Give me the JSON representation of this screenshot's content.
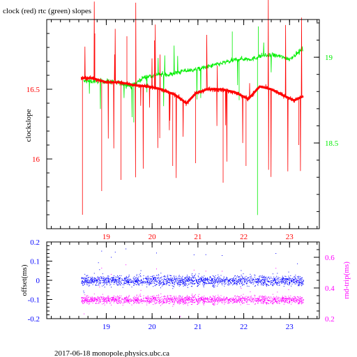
{
  "chart_data": [
    {
      "type": "line",
      "title": "clock (red) rtc (green) slopes",
      "ylabel_left": "clockslope",
      "x_ticks": [
        "19",
        "20",
        "21",
        "22",
        "23"
      ],
      "xlim": [
        17.7,
        23.65
      ],
      "ylim_left": [
        15.5,
        17.0
      ],
      "ylim_right": [
        18.0,
        19.22
      ],
      "y_ticks_left": [
        {
          "label": "16",
          "value": 16.0
        },
        {
          "label": "16.5",
          "value": 16.5
        }
      ],
      "y_ticks_right": [
        {
          "label": "18.5",
          "value": 18.5
        },
        {
          "label": "19",
          "value": 19.0
        }
      ],
      "colors": {
        "left_axis": "#ff0000",
        "right_axis": "#00ee00",
        "x_ticks": "#ff0000",
        "frame": "#000000"
      },
      "series": [
        {
          "axis": "left",
          "color": "#ff0000",
          "x": [
            18.45,
            18.7,
            19.0,
            19.3,
            19.6,
            19.9,
            20.2,
            20.5,
            20.75,
            20.95,
            21.2,
            21.5,
            21.8,
            22.1,
            22.35,
            22.6,
            22.9,
            23.1,
            23.3
          ],
          "y": [
            16.58,
            16.58,
            16.55,
            16.55,
            16.53,
            16.52,
            16.5,
            16.46,
            16.4,
            16.47,
            16.5,
            16.5,
            16.48,
            16.43,
            16.52,
            16.5,
            16.45,
            16.42,
            16.45
          ]
        },
        {
          "axis": "right",
          "color": "#00ee00",
          "x": [
            18.5,
            18.7,
            19.0,
            19.3,
            19.55,
            19.8,
            20.1,
            20.4,
            20.7,
            21.0,
            21.3,
            21.6,
            21.9,
            22.2,
            22.4,
            22.7,
            23.0,
            23.3
          ],
          "y": [
            18.86,
            18.86,
            18.86,
            18.85,
            18.83,
            18.88,
            18.9,
            18.9,
            18.92,
            18.93,
            18.95,
            18.97,
            18.99,
            18.99,
            19.01,
            19.01,
            18.99,
            19.05
          ]
        }
      ]
    },
    {
      "type": "scatter",
      "ylabel_left": "offset(ms)",
      "ylabel_right": "rnd-trip(ms)",
      "x_ticks": [
        "19",
        "20",
        "21",
        "22",
        "23"
      ],
      "xlim": [
        17.7,
        23.65
      ],
      "ylim_left": [
        -0.2,
        0.2
      ],
      "ylim_right": [
        0.2,
        0.7
      ],
      "y_ticks_left": [
        {
          "label": "-0.2",
          "value": -0.2
        },
        {
          "label": "-0.1",
          "value": -0.1
        },
        {
          "label": "0",
          "value": 0
        },
        {
          "label": "0.1",
          "value": 0.1
        },
        {
          "label": "0.2",
          "value": 0.2
        }
      ],
      "y_ticks_right": [
        {
          "label": "0.2",
          "value": 0.2
        },
        {
          "label": "0.4",
          "value": 0.4
        },
        {
          "label": "0.6",
          "value": 0.6
        }
      ],
      "colors": {
        "left_axis": "#0000ff",
        "right_axis": "#ff00ff",
        "x_ticks": "#0000ff",
        "frame": "#000000"
      },
      "series": [
        {
          "axis": "left",
          "color": "#0000ff",
          "x_range": [
            18.45,
            23.3
          ],
          "y_center": 0.0,
          "y_spread": 0.03
        },
        {
          "axis": "right",
          "color": "#ff00ff",
          "x_range": [
            18.45,
            23.3
          ],
          "y_center": 0.325,
          "y_spread": 0.03
        }
      ]
    }
  ],
  "footer": "2017-06-18  monopole.physics.ubc.ca"
}
